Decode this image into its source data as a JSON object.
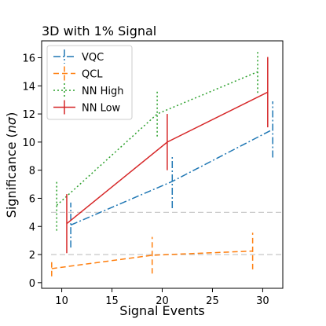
{
  "chart_data": {
    "type": "line",
    "title": "3D with 1% Signal",
    "xlabel": "Signal Events",
    "ylabel": "Significance (",
    "ylabel_italic": "nσ",
    "ylabel_close": ")",
    "xlim": [
      8,
      32
    ],
    "ylim": [
      -0.4,
      17.2
    ],
    "xticks": [
      10,
      15,
      20,
      25,
      30
    ],
    "xtick_labels": [
      "10",
      "15",
      "20",
      "25",
      "30"
    ],
    "yticks": [
      0,
      2,
      4,
      6,
      8,
      10,
      12,
      14,
      16
    ],
    "ytick_labels": [
      "0",
      "2",
      "4",
      "6",
      "8",
      "10",
      "12",
      "14",
      "16"
    ],
    "reference_lines": [
      {
        "y": 5,
        "color": "#cccccc"
      },
      {
        "y": 2,
        "color": "#cccccc"
      }
    ],
    "legend_position": "top-left",
    "series": [
      {
        "name": "VQC",
        "color": "#1f77b4",
        "style": "dashdot",
        "x": [
          10.9,
          21.0,
          31.0
        ],
        "y": [
          4.1,
          7.2,
          10.9
        ],
        "yerr": [
          1.6,
          1.9,
          2.0
        ]
      },
      {
        "name": "QCL",
        "color": "#ff7f0e",
        "style": "dashed",
        "x": [
          9.0,
          19.0,
          29.0
        ],
        "y": [
          1.0,
          1.95,
          2.25
        ],
        "yerr": [
          0.55,
          1.3,
          1.3
        ]
      },
      {
        "name": "NN High",
        "color": "#2ca02c",
        "style": "dotted",
        "x": [
          9.5,
          19.5,
          29.5
        ],
        "y": [
          5.5,
          12.0,
          15.0
        ],
        "yerr": [
          1.8,
          1.6,
          1.5
        ]
      },
      {
        "name": "NN Low",
        "color": "#d62728",
        "style": "solid",
        "x": [
          10.5,
          20.5,
          30.5
        ],
        "y": [
          4.2,
          10.0,
          13.55
        ],
        "yerr": [
          2.1,
          2.0,
          2.5
        ]
      }
    ]
  }
}
